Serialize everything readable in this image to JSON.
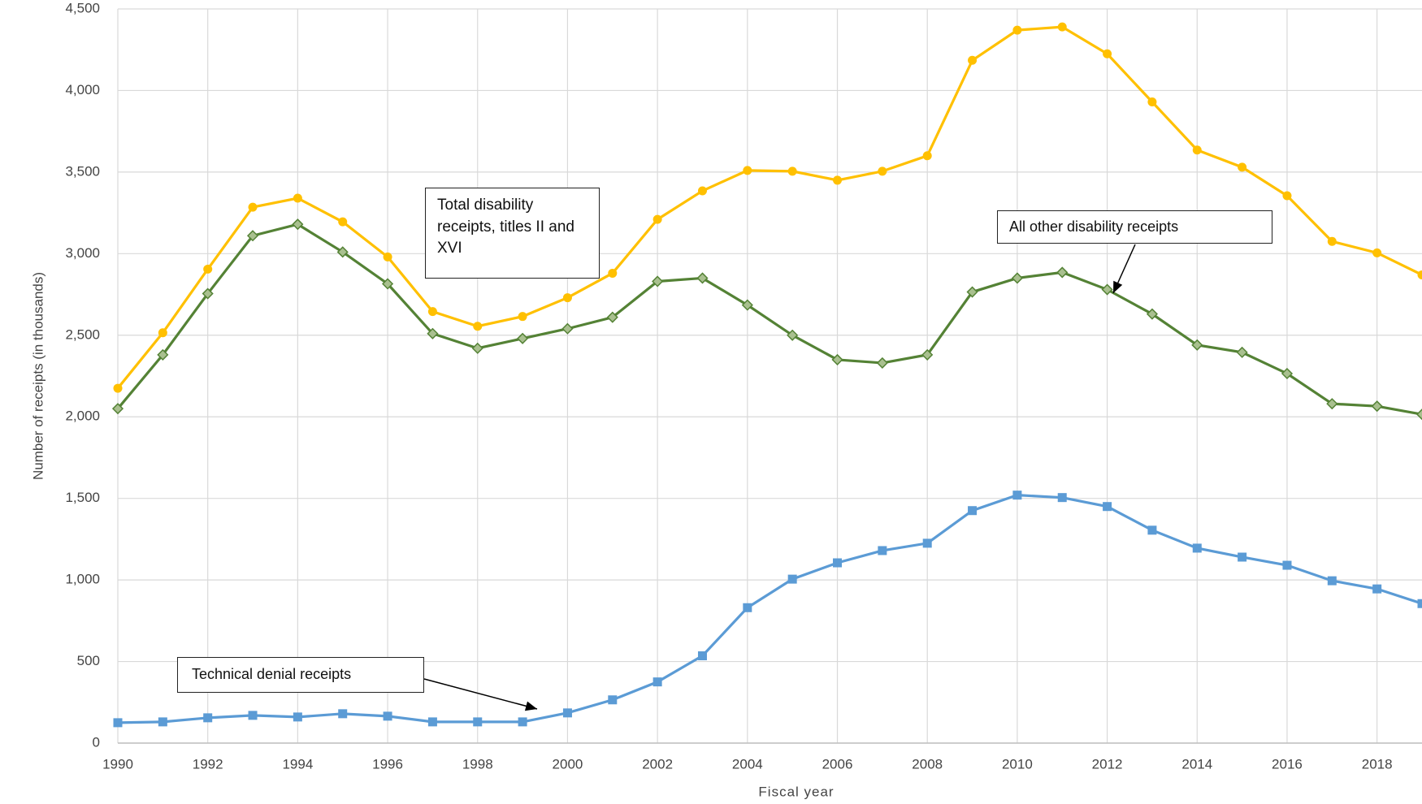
{
  "chart_data": {
    "type": "line",
    "x_label": "Fiscal year",
    "y_label": "Number of receipts (in thousands)",
    "x": [
      1990,
      1991,
      1992,
      1993,
      1994,
      1995,
      1996,
      1997,
      1998,
      1999,
      2000,
      2001,
      2002,
      2003,
      2004,
      2005,
      2006,
      2007,
      2008,
      2009,
      2010,
      2011,
      2012,
      2013,
      2014,
      2015,
      2016,
      2017,
      2018,
      2019
    ],
    "xlim": [
      1990,
      2019
    ],
    "xticks": [
      1990,
      1992,
      1994,
      1996,
      1998,
      2000,
      2002,
      2004,
      2006,
      2008,
      2010,
      2012,
      2014,
      2016,
      2018
    ],
    "ylim": [
      0,
      4500
    ],
    "yticks": [
      0,
      {
        "value": 500,
        "label": "500"
      },
      {
        "value": 1000,
        "label": "1,000"
      },
      {
        "value": 1500,
        "label": "1,500"
      },
      {
        "value": 2000,
        "label": "2,000"
      },
      {
        "value": 2500,
        "label": "2,500"
      },
      {
        "value": 3000,
        "label": "3,000"
      },
      {
        "value": 3500,
        "label": "3,500"
      },
      {
        "value": 4000,
        "label": "4,000"
      },
      {
        "value": 4500,
        "label": "4,500"
      }
    ],
    "grid": true,
    "series": [
      {
        "name": "Total disability receipts, titles II and XVI",
        "color": "#ffc000",
        "marker": "circle",
        "values": [
          2175,
          2515,
          2905,
          3285,
          3340,
          3195,
          2980,
          2645,
          2555,
          2615,
          2730,
          2880,
          3210,
          3385,
          3510,
          3505,
          3450,
          3505,
          3600,
          4185,
          4370,
          4390,
          4225,
          3930,
          3635,
          3530,
          3355,
          3075,
          3005,
          2870
        ]
      },
      {
        "name": "All other disability receipts",
        "color": "#548235",
        "marker": "diamond",
        "values": [
          2050,
          2380,
          2755,
          3110,
          3180,
          3010,
          2815,
          2510,
          2420,
          2480,
          2540,
          2610,
          2830,
          2850,
          2685,
          2500,
          2350,
          2330,
          2380,
          2765,
          2850,
          2885,
          2780,
          2630,
          2440,
          2395,
          2265,
          2080,
          2065,
          2015
        ]
      },
      {
        "name": "Technical denial receipts",
        "color": "#5b9bd5",
        "marker": "square",
        "values": [
          125,
          130,
          155,
          170,
          160,
          180,
          165,
          130,
          130,
          130,
          185,
          265,
          375,
          535,
          830,
          1005,
          1105,
          1180,
          1225,
          1425,
          1520,
          1505,
          1450,
          1305,
          1195,
          1140,
          1090,
          995,
          945,
          855
        ]
      }
    ]
  }
}
